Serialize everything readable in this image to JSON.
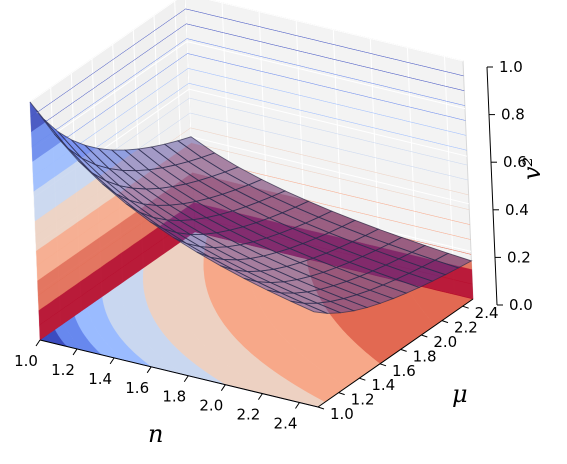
{
  "chart_data": {
    "type": "surface3d",
    "title": "",
    "xlabel": "n",
    "ylabel": "μ",
    "zlabel": "v²",
    "xlim": [
      1.0,
      2.5
    ],
    "ylim": [
      1.0,
      2.5
    ],
    "zlim": [
      0.0,
      1.0
    ],
    "x_ticks": [
      "1.0",
      "1.2",
      "1.4",
      "1.6",
      "1.8",
      "2.0",
      "2.2",
      "2.4"
    ],
    "y_ticks": [
      "1.0",
      "1.2",
      "1.4",
      "1.6",
      "1.8",
      "2.0",
      "2.2",
      "2.4"
    ],
    "z_ticks": [
      "0.0",
      "0.2",
      "0.4",
      "0.6",
      "0.8",
      "1.0"
    ],
    "surface": {
      "function": "v2 = 1 / (n * mu)",
      "description": "Semi-transparent blue wireframe surface",
      "color": "#6670e0"
    },
    "contours": [
      {
        "plane": "n = 1.0 wall",
        "function": "v2 = 1/mu",
        "colormap": "coolwarm"
      },
      {
        "plane": "mu = 2.5 wall",
        "function": "v2 = 1/(2.5 n)",
        "colormap": "coolwarm"
      },
      {
        "plane": "v2 = 0 floor",
        "function": "v2 = 1/(n mu)",
        "colormap": "coolwarm"
      }
    ],
    "colormap_colors": [
      "#3b4cc0",
      "#6788ee",
      "#9abbff",
      "#c9d7f0",
      "#edd1c2",
      "#f7a889",
      "#e26952",
      "#b40426"
    ],
    "grid": true,
    "panes": "light gray"
  }
}
